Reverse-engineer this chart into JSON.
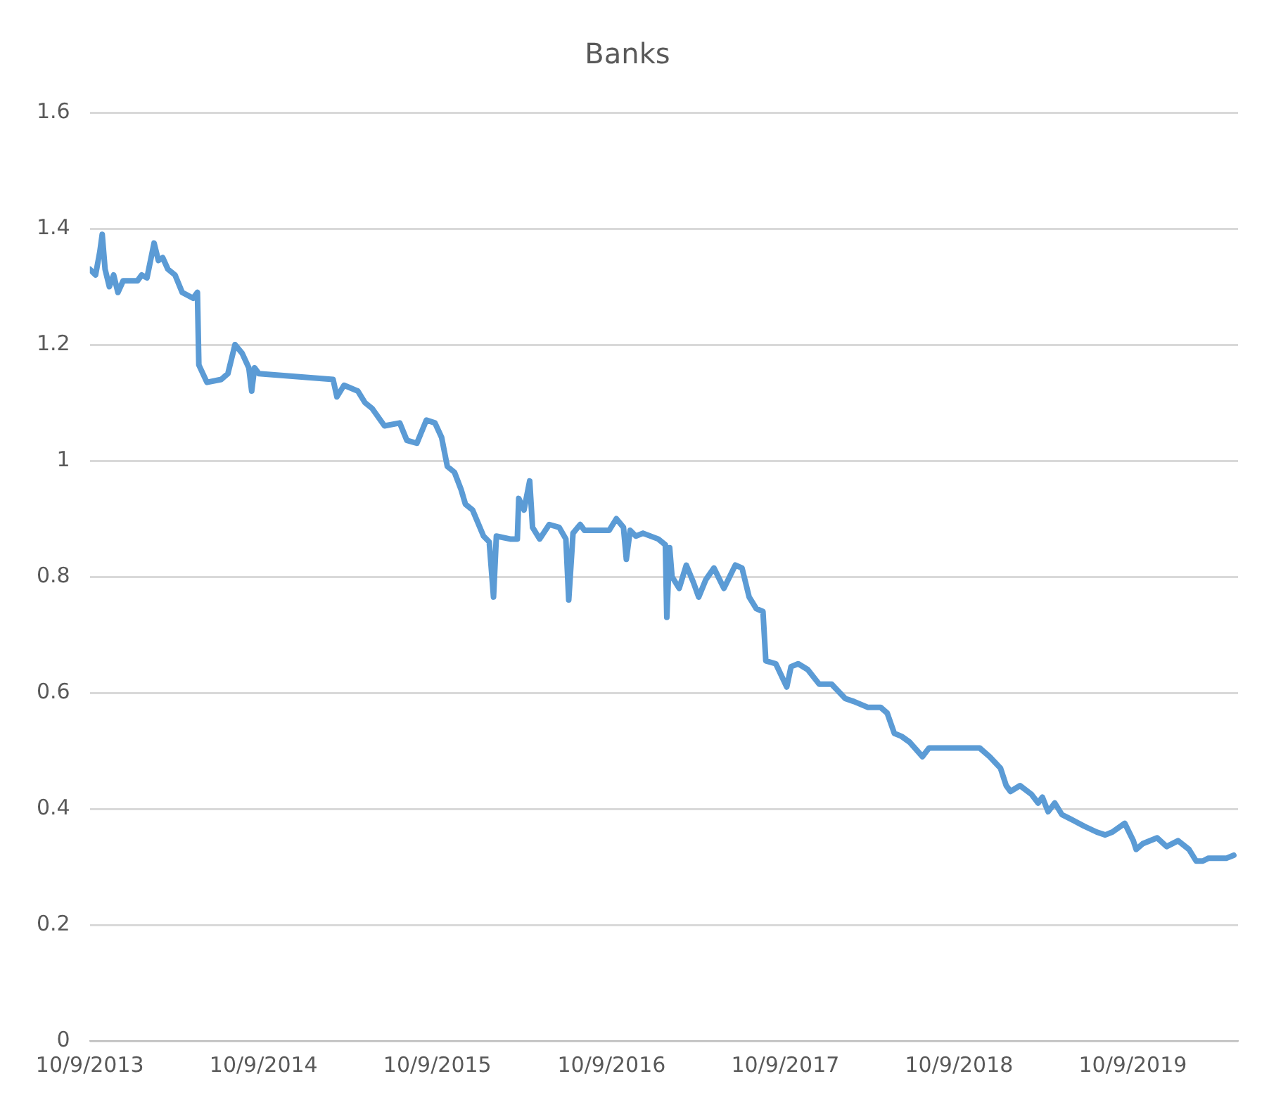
{
  "chart_data": {
    "type": "line",
    "title": "Banks",
    "color": "#5b9bd5",
    "grid": "y",
    "legend": false,
    "marker": "none",
    "line_style": "solid",
    "xlim": [
      "2013-10-09",
      "2020-05-17"
    ],
    "xticks": [
      {
        "value": "2013-10-09",
        "label": "10/9/2013"
      },
      {
        "value": "2014-10-09",
        "label": "10/9/2014"
      },
      {
        "value": "2015-10-09",
        "label": "10/9/2015"
      },
      {
        "value": "2016-10-09",
        "label": "10/9/2016"
      },
      {
        "value": "2017-10-09",
        "label": "10/9/2017"
      },
      {
        "value": "2018-10-09",
        "label": "10/9/2018"
      },
      {
        "value": "2019-10-09",
        "label": "10/9/2019"
      }
    ],
    "ylim": [
      0,
      1.6
    ],
    "yticks": [
      0,
      0.2,
      0.4,
      0.6,
      0.8,
      1,
      1.2,
      1.4,
      1.6
    ],
    "x": [
      "2013-10-09",
      "2013-10-21",
      "2013-10-30",
      "2013-11-04",
      "2013-11-10",
      "2013-11-19",
      "2013-11-28",
      "2013-12-07",
      "2013-12-18",
      "2014-01-17",
      "2014-01-26",
      "2014-02-06",
      "2014-02-21",
      "2014-03-02",
      "2014-03-11",
      "2014-03-22",
      "2014-04-06",
      "2014-04-21",
      "2014-05-14",
      "2014-05-23",
      "2014-05-26",
      "2014-06-12",
      "2014-07-12",
      "2014-07-26",
      "2014-08-10",
      "2014-08-25",
      "2014-09-08",
      "2014-09-14",
      "2014-09-20",
      "2014-09-29",
      "2015-03-04",
      "2015-03-12",
      "2015-03-27",
      "2015-04-25",
      "2015-05-10",
      "2015-05-25",
      "2015-06-20",
      "2015-07-22",
      "2015-08-06",
      "2015-08-27",
      "2015-09-16",
      "2015-10-04",
      "2015-10-18",
      "2015-10-30",
      "2015-11-14",
      "2015-11-28",
      "2015-12-07",
      "2015-12-22",
      "2016-01-14",
      "2016-01-26",
      "2016-02-04",
      "2016-02-10",
      "2016-03-10",
      "2016-03-25",
      "2016-03-28",
      "2016-04-08",
      "2016-04-20",
      "2016-04-26",
      "2016-05-11",
      "2016-05-31",
      "2016-06-21",
      "2016-07-05",
      "2016-07-11",
      "2016-07-20",
      "2016-08-04",
      "2016-08-13",
      "2016-10-04",
      "2016-10-19",
      "2016-11-03",
      "2016-11-09",
      "2016-11-17",
      "2016-11-29",
      "2016-12-14",
      "2017-01-15",
      "2017-01-30",
      "2017-02-02",
      "2017-02-08",
      "2017-02-13",
      "2017-02-28",
      "2017-03-15",
      "2017-03-30",
      "2017-04-10",
      "2017-04-25",
      "2017-05-12",
      "2017-06-02",
      "2017-06-26",
      "2017-07-10",
      "2017-07-25",
      "2017-08-09",
      "2017-08-23",
      "2017-08-29",
      "2017-09-19",
      "2017-10-12",
      "2017-10-21",
      "2017-11-05",
      "2017-11-25",
      "2017-12-19",
      "2018-01-14",
      "2018-02-12",
      "2018-03-02",
      "2018-03-31",
      "2018-04-27",
      "2018-05-11",
      "2018-05-26",
      "2018-06-10",
      "2018-06-27",
      "2018-07-24",
      "2018-08-07",
      "2018-11-21",
      "2018-12-12",
      "2019-01-04",
      "2019-01-16",
      "2019-01-25",
      "2019-02-14",
      "2019-03-10",
      "2019-03-24",
      "2019-04-02",
      "2019-04-14",
      "2019-04-28",
      "2019-05-13",
      "2019-06-06",
      "2019-06-29",
      "2019-07-25",
      "2019-08-12",
      "2019-08-27",
      "2019-09-22",
      "2019-10-10",
      "2019-10-16",
      "2019-10-30",
      "2019-11-29",
      "2019-12-19",
      "2020-01-12",
      "2020-02-04",
      "2020-02-19",
      "2020-03-04",
      "2020-03-16",
      "2020-04-23",
      "2020-05-08"
    ],
    "values": [
      1.33,
      1.32,
      1.36,
      1.39,
      1.33,
      1.3,
      1.32,
      1.29,
      1.31,
      1.31,
      1.32,
      1.315,
      1.375,
      1.345,
      1.35,
      1.33,
      1.32,
      1.29,
      1.28,
      1.29,
      1.165,
      1.135,
      1.14,
      1.15,
      1.2,
      1.185,
      1.16,
      1.12,
      1.16,
      1.15,
      1.14,
      1.11,
      1.13,
      1.12,
      1.1,
      1.09,
      1.06,
      1.065,
      1.035,
      1.03,
      1.07,
      1.065,
      1.04,
      0.99,
      0.98,
      0.95,
      0.925,
      0.915,
      0.87,
      0.86,
      0.765,
      0.87,
      0.865,
      0.865,
      0.935,
      0.915,
      0.965,
      0.885,
      0.865,
      0.89,
      0.885,
      0.865,
      0.76,
      0.875,
      0.89,
      0.88,
      0.88,
      0.9,
      0.885,
      0.83,
      0.88,
      0.87,
      0.875,
      0.865,
      0.855,
      0.73,
      0.85,
      0.8,
      0.78,
      0.82,
      0.79,
      0.765,
      0.795,
      0.815,
      0.78,
      0.82,
      0.815,
      0.765,
      0.745,
      0.74,
      0.655,
      0.65,
      0.61,
      0.645,
      0.65,
      0.64,
      0.615,
      0.615,
      0.59,
      0.585,
      0.575,
      0.575,
      0.565,
      0.53,
      0.525,
      0.515,
      0.49,
      0.505,
      0.505,
      0.49,
      0.47,
      0.44,
      0.43,
      0.44,
      0.425,
      0.41,
      0.42,
      0.395,
      0.41,
      0.39,
      0.38,
      0.37,
      0.36,
      0.355,
      0.36,
      0.375,
      0.345,
      0.33,
      0.34,
      0.35,
      0.335,
      0.345,
      0.33,
      0.31,
      0.31,
      0.315,
      0.315,
      0.32
    ]
  }
}
